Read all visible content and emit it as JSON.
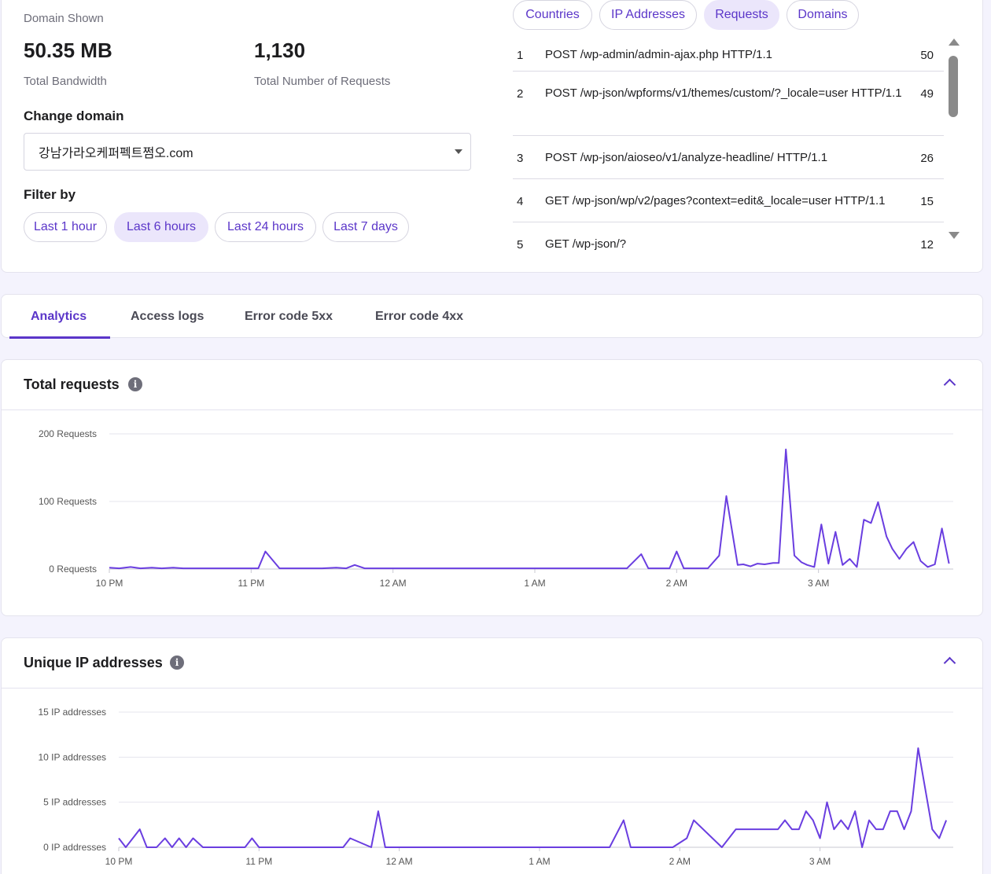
{
  "summary": {
    "domain_shown_label": "Domain Shown",
    "bandwidth_value": "50.35 MB",
    "bandwidth_label": "Total Bandwidth",
    "requests_value": "1,130",
    "requests_label": "Total Number of Requests"
  },
  "change_domain": {
    "heading": "Change domain",
    "selected": "강남가라오케퍼펙트쩜오.com"
  },
  "filter": {
    "heading": "Filter by",
    "options": [
      "Last 1 hour",
      "Last 6 hours",
      "Last 24 hours",
      "Last 7 days"
    ],
    "selected": "Last 6 hours"
  },
  "top_tabs": {
    "items": [
      "Countries",
      "IP Addresses",
      "Requests",
      "Domains"
    ],
    "selected": "Requests"
  },
  "requests_table": [
    {
      "rank": "1",
      "path": "POST /wp-admin/admin-ajax.php HTTP/1.1",
      "count": "50"
    },
    {
      "rank": "2",
      "path": "POST /wp-json/wpforms/v1/themes/custom/?_locale=user HTTP/1.1",
      "count": "49"
    },
    {
      "rank": "3",
      "path": "POST /wp-json/aioseo/v1/analyze-headline/ HTTP/1.1",
      "count": "26"
    },
    {
      "rank": "4",
      "path": "GET /wp-json/wp/v2/pages?context=edit&_locale=user HTTP/1.1",
      "count": "15"
    },
    {
      "rank": "5",
      "path": "GET /wp-json/?",
      "count": "12"
    }
  ],
  "section_tabs": {
    "items": [
      "Analytics",
      "Access logs",
      "Error code 5xx",
      "Error code 4xx"
    ],
    "selected": "Analytics"
  },
  "colors": {
    "accent": "#5b36c9",
    "line": "#6a3ee0"
  },
  "chart_data": [
    {
      "type": "line",
      "title": "Total requests",
      "x_tick_labels": [
        "10 PM",
        "11 PM",
        "12 AM",
        "1 AM",
        "2 AM",
        "3 AM"
      ],
      "y_tick_labels": [
        "0 Requests",
        "100 Requests",
        "200 Requests"
      ],
      "ylim": [
        0,
        200
      ],
      "grid": true,
      "x_hours_range": [
        22,
        27.95
      ],
      "series": [
        {
          "x": [
            22.0,
            22.07,
            22.15,
            22.22,
            22.3,
            22.37,
            22.45,
            22.52,
            22.6,
            22.7,
            22.8,
            22.9,
            23.0,
            23.05,
            23.1,
            23.2,
            23.4,
            23.5,
            23.6,
            23.67,
            23.73,
            23.8,
            23.9,
            24.0,
            24.5,
            25.0,
            25.5,
            25.65,
            25.75,
            25.8,
            25.9,
            25.95,
            26.0,
            26.05,
            26.15,
            26.22,
            26.3,
            26.35,
            26.43,
            26.47,
            26.52,
            26.57,
            26.62,
            26.68,
            26.72,
            26.77,
            26.83,
            26.88,
            26.92,
            26.97,
            27.02,
            27.07,
            27.12,
            27.17,
            27.22,
            27.27,
            27.32,
            27.37,
            27.42,
            27.48,
            27.52,
            27.57,
            27.62,
            27.67,
            27.72,
            27.77,
            27.82,
            27.87,
            27.92
          ],
          "y": [
            2,
            1,
            3,
            1,
            2,
            1,
            2,
            1,
            1,
            1,
            1,
            1,
            1,
            1,
            26,
            1,
            1,
            1,
            2,
            1,
            6,
            1,
            1,
            1,
            1,
            1,
            1,
            1,
            22,
            1,
            1,
            1,
            26,
            1,
            1,
            1,
            20,
            108,
            6,
            7,
            4,
            8,
            7,
            9,
            9,
            177,
            20,
            10,
            6,
            3,
            66,
            8,
            55,
            6,
            15,
            3,
            73,
            68,
            99,
            48,
            30,
            15,
            30,
            40,
            12,
            3,
            7,
            60,
            8
          ]
        }
      ]
    },
    {
      "type": "line",
      "title": "Unique IP addresses",
      "x_tick_labels": [
        "10 PM",
        "11 PM",
        "12 AM",
        "1 AM",
        "2 AM",
        "3 AM"
      ],
      "y_tick_labels": [
        "0 IP addresses",
        "5 IP addresses",
        "10 IP addresses",
        "15 IP addresses"
      ],
      "ylim": [
        0,
        15
      ],
      "grid": true,
      "x_hours_range": [
        22,
        27.95
      ],
      "series": [
        {
          "x": [
            22.0,
            22.05,
            22.15,
            22.2,
            22.27,
            22.33,
            22.38,
            22.43,
            22.48,
            22.53,
            22.6,
            22.8,
            22.9,
            22.95,
            23.0,
            23.5,
            23.6,
            23.65,
            23.8,
            23.85,
            23.9,
            24.0,
            25.5,
            25.6,
            25.65,
            25.9,
            25.95,
            26.05,
            26.1,
            26.3,
            26.4,
            26.7,
            26.75,
            26.8,
            26.85,
            26.9,
            26.95,
            27.0,
            27.05,
            27.1,
            27.15,
            27.2,
            27.25,
            27.3,
            27.35,
            27.4,
            27.45,
            27.5,
            27.55,
            27.6,
            27.65,
            27.7,
            27.8,
            27.85,
            27.9
          ],
          "y": [
            1,
            0,
            2,
            0,
            0,
            1,
            0,
            1,
            0,
            1,
            0,
            0,
            0,
            1,
            0,
            0,
            0,
            1,
            0,
            4,
            0,
            0,
            0,
            3,
            0,
            0,
            0,
            1,
            3,
            0,
            2,
            2,
            3,
            2,
            2,
            4,
            3,
            1,
            5,
            2,
            3,
            2,
            4,
            0,
            3,
            2,
            2,
            4,
            4,
            2,
            4,
            11,
            2,
            1,
            3
          ]
        }
      ]
    }
  ]
}
